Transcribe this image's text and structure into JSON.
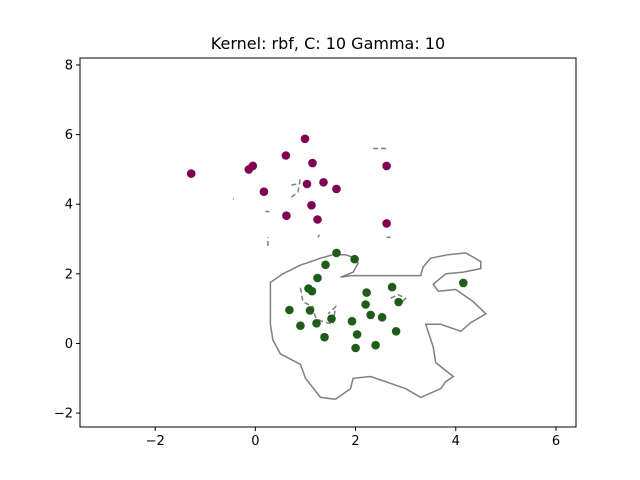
{
  "chart_data": {
    "type": "scatter",
    "title": "Kernel: rbf, C: 10 Gamma: 10",
    "xlabel": "",
    "ylabel": "",
    "xlim": [
      -3.5,
      6.4
    ],
    "ylim": [
      -2.4,
      8.2
    ],
    "xticks": [
      -2,
      0,
      2,
      4,
      6
    ],
    "yticks": [
      -2,
      0,
      2,
      4,
      6,
      8
    ],
    "xtick_labels": [
      "−2",
      "0",
      "2",
      "4",
      "6"
    ],
    "ytick_labels": [
      "−2",
      "0",
      "2",
      "4",
      "6",
      "8"
    ],
    "grid": false,
    "series": [
      {
        "color": "#800052",
        "points": [
          [
            -1.28,
            4.88
          ],
          [
            -0.13,
            5.0
          ],
          [
            -0.05,
            5.1
          ],
          [
            0.17,
            4.36
          ],
          [
            0.61,
            5.4
          ],
          [
            0.62,
            3.67
          ],
          [
            0.99,
            5.88
          ],
          [
            1.03,
            4.58
          ],
          [
            1.12,
            3.97
          ],
          [
            1.14,
            5.18
          ],
          [
            1.24,
            3.56
          ],
          [
            1.36,
            4.63
          ],
          [
            1.62,
            4.44
          ],
          [
            2.62,
            5.1
          ],
          [
            2.62,
            3.45
          ]
        ]
      },
      {
        "color": "#1f5c1a",
        "points": [
          [
            0.68,
            0.96
          ],
          [
            0.9,
            0.51
          ],
          [
            1.06,
            1.58
          ],
          [
            1.09,
            0.95
          ],
          [
            1.13,
            1.5
          ],
          [
            1.22,
            0.58
          ],
          [
            1.24,
            1.88
          ],
          [
            1.38,
            0.18
          ],
          [
            1.4,
            2.26
          ],
          [
            1.52,
            0.71
          ],
          [
            1.62,
            2.6
          ],
          [
            1.93,
            0.64
          ],
          [
            1.98,
            2.42
          ],
          [
            2.0,
            -0.13
          ],
          [
            2.03,
            0.26
          ],
          [
            2.2,
            1.12
          ],
          [
            2.22,
            1.46
          ],
          [
            2.3,
            0.82
          ],
          [
            2.4,
            -0.05
          ],
          [
            2.53,
            0.75
          ],
          [
            2.73,
            1.62
          ],
          [
            2.81,
            0.35
          ],
          [
            2.86,
            1.19
          ],
          [
            4.15,
            1.74
          ]
        ]
      }
    ],
    "contours": [
      {
        "style": "solid",
        "points": [
          [
            0.9,
            2.25
          ],
          [
            0.55,
            2.0
          ],
          [
            0.3,
            1.75
          ],
          [
            0.3,
            1.35
          ],
          [
            0.3,
            0.9
          ],
          [
            0.3,
            0.55
          ],
          [
            0.35,
            0.1
          ],
          [
            0.5,
            -0.3
          ],
          [
            0.9,
            -0.6
          ],
          [
            1.0,
            -1.0
          ],
          [
            1.3,
            -1.55
          ],
          [
            1.6,
            -1.6
          ],
          [
            1.9,
            -1.3
          ],
          [
            1.95,
            -1.0
          ],
          [
            2.3,
            -0.95
          ],
          [
            2.6,
            -1.1
          ],
          [
            3.0,
            -1.3
          ],
          [
            3.3,
            -1.55
          ],
          [
            3.7,
            -1.3
          ],
          [
            3.8,
            -1.1
          ],
          [
            3.95,
            -0.95
          ],
          [
            3.6,
            -0.55
          ],
          [
            3.55,
            -0.1
          ],
          [
            3.4,
            0.55
          ],
          [
            3.7,
            0.55
          ],
          [
            4.1,
            0.35
          ],
          [
            4.3,
            0.6
          ],
          [
            4.6,
            0.85
          ],
          [
            4.35,
            1.2
          ],
          [
            4.0,
            1.55
          ],
          [
            3.65,
            1.5
          ],
          [
            3.55,
            1.7
          ],
          [
            3.8,
            2.0
          ],
          [
            4.15,
            2.05
          ],
          [
            4.5,
            2.15
          ],
          [
            4.5,
            2.35
          ],
          [
            4.2,
            2.6
          ],
          [
            3.85,
            2.55
          ],
          [
            3.5,
            2.45
          ],
          [
            3.35,
            2.2
          ],
          [
            3.3,
            1.95
          ],
          [
            2.8,
            1.95
          ],
          [
            2.2,
            1.95
          ],
          [
            1.9,
            1.95
          ],
          [
            1.7,
            1.9
          ],
          [
            1.95,
            2.05
          ],
          [
            2.05,
            2.3
          ],
          [
            2.0,
            2.45
          ],
          [
            1.8,
            2.55
          ],
          [
            1.55,
            2.55
          ],
          [
            1.3,
            2.45
          ],
          [
            1.0,
            2.3
          ],
          [
            0.9,
            2.25
          ]
        ]
      },
      {
        "style": "dashed",
        "points": [
          [
            0.9,
            1.6
          ],
          [
            0.95,
            1.2
          ],
          [
            1.15,
            1.05
          ],
          [
            1.2,
            0.75
          ],
          [
            1.3,
            0.65
          ],
          [
            1.55,
            0.55
          ],
          [
            1.6,
            1.05
          ],
          [
            1.45,
            0.85
          ]
        ]
      },
      {
        "style": "dashed",
        "points": [
          [
            2.7,
            1.3
          ],
          [
            2.85,
            1.4
          ],
          [
            3.0,
            1.3
          ],
          [
            2.9,
            1.15
          ],
          [
            2.75,
            1.05
          ]
        ]
      },
      {
        "style": "dashed",
        "points": [
          [
            0.72,
            4.2
          ],
          [
            0.85,
            4.35
          ],
          [
            0.9,
            4.75
          ]
        ]
      },
      {
        "style": "dashed",
        "points": [
          [
            0.72,
            4.55
          ],
          [
            0.9,
            4.6
          ]
        ]
      },
      {
        "style": "dashed",
        "points": [
          [
            0.25,
            2.8
          ],
          [
            0.25,
            3.05
          ]
        ]
      },
      {
        "style": "dashed",
        "points": [
          [
            0.2,
            3.8
          ],
          [
            0.28,
            3.78
          ]
        ]
      },
      {
        "style": "dashed",
        "points": [
          [
            -0.45,
            4.15
          ],
          [
            -0.43,
            4.15
          ]
        ]
      },
      {
        "style": "dashed",
        "points": [
          [
            1.25,
            3.05
          ],
          [
            1.28,
            3.12
          ]
        ]
      },
      {
        "style": "dashed",
        "points": [
          [
            2.35,
            5.6
          ],
          [
            2.65,
            5.6
          ]
        ]
      },
      {
        "style": "dashed",
        "points": [
          [
            2.62,
            3.05
          ],
          [
            2.7,
            3.05
          ]
        ]
      }
    ]
  }
}
